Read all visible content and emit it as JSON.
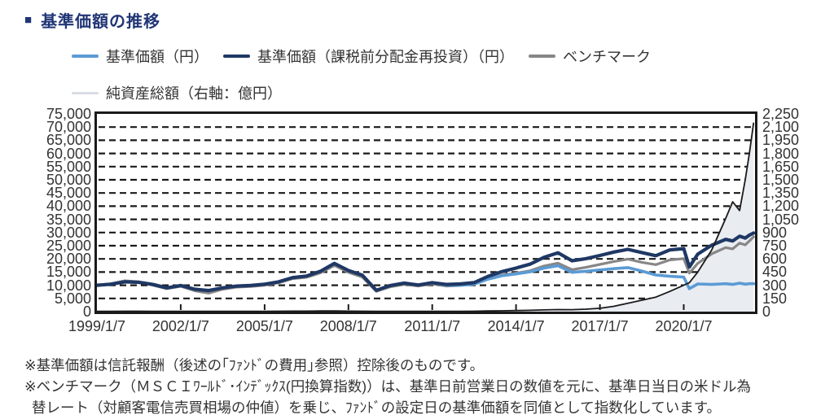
{
  "title": {
    "bullet": "■",
    "text": "基準価額の推移"
  },
  "legend": {
    "items": [
      {
        "label": "基準価額（円）",
        "color": "#5B9BD5",
        "thin": false
      },
      {
        "label": "基準価額（課税前分配金再投資）（円）",
        "color": "#1F3864",
        "thin": false
      },
      {
        "label": "ベンチマーク",
        "color": "#878787",
        "thin": false
      },
      {
        "label": "純資産総額（右軸：億円）",
        "color": "#D9DCE2",
        "thin": true
      }
    ]
  },
  "notes": {
    "line1": "※基準価額は信託報酬（後述の｢ﾌｧﾝﾄﾞの費用｣参照）控除後のものです。",
    "line2": "※ベンチマーク（ＭＳＣＩﾜｰﾙﾄﾞ･ｲﾝﾃﾞｯｸｽ(円換算指数)）は、基準日前営業日の数値を元に、基準日当日の米ドル為",
    "line3": "替レート（対顧客電信売買相場の仲値）を乗じ、ﾌｧﾝﾄﾞの設定日の基準価額を同値として指数化しています。"
  },
  "colors": {
    "title_navy": "#203576",
    "axis_text": "#333333",
    "frame": "#1a1a1a"
  },
  "chart_data": {
    "type": "line",
    "title": "基準価額の推移",
    "grid": "dashed-horizontal",
    "legend_position": "top",
    "x_range_years": [
      1999,
      2022.55
    ],
    "x_tick_years": [
      1999,
      2002,
      2005,
      2008,
      2011,
      2014,
      2017,
      2020
    ],
    "x_tick_labels": [
      "1999/1/7",
      "2002/1/7",
      "2005/1/7",
      "2008/1/7",
      "2011/1/7",
      "2014/1/7",
      "2017/1/7",
      "2020/1/7"
    ],
    "y_left": {
      "range": [
        0,
        75000
      ],
      "tick_step": 5000,
      "tick_labels_top_to_bottom": [
        "75,000",
        "70,000",
        "65,000",
        "60,000",
        "55,000",
        "50,000",
        "45,000",
        "40,000",
        "35,000",
        "30,000",
        "25,000",
        "20,000",
        "15,000",
        "10,000",
        "5,000",
        "0"
      ]
    },
    "y_right": {
      "label": "純資産総額（億円）",
      "range": [
        0,
        2250
      ],
      "tick_step": 150,
      "tick_labels_top_to_bottom": [
        "2,250",
        "2,100",
        "1,950",
        "1,800",
        "1,650",
        "1,500",
        "1,350",
        "1,200",
        "1,050",
        "900",
        "750",
        "600",
        "450",
        "300",
        "150",
        "0"
      ]
    },
    "x": [
      1999,
      1999.5,
      2000,
      2000.5,
      2001,
      2001.5,
      2002,
      2002.5,
      2003,
      2003.5,
      2004,
      2004.5,
      2005,
      2005.5,
      2006,
      2006.5,
      2007,
      2007.5,
      2008,
      2008.5,
      2009,
      2009.5,
      2010,
      2010.5,
      2011,
      2011.5,
      2012,
      2012.5,
      2013,
      2013.5,
      2014,
      2014.5,
      2015,
      2015.5,
      2016,
      2016.5,
      2017,
      2017.5,
      2018,
      2018.5,
      2019,
      2019.5,
      2020,
      2020.2,
      2020.5,
      2021,
      2021.5,
      2021.75,
      2022,
      2022.2,
      2022.35,
      2022.5
    ],
    "series": [
      {
        "name": "基準価額（円）",
        "axis": "left",
        "style": "line",
        "color": "#5B9BD5",
        "values": [
          10000,
          10400,
          11300,
          11100,
          10300,
          9000,
          9900,
          8500,
          8000,
          9000,
          9700,
          9900,
          10400,
          11300,
          12900,
          13500,
          15300,
          18300,
          15600,
          13800,
          8100,
          9900,
          10800,
          10100,
          11000,
          10000,
          10000,
          10400,
          12300,
          13600,
          14300,
          15100,
          16500,
          17400,
          14900,
          15300,
          15800,
          16300,
          16700,
          15400,
          13900,
          13400,
          13100,
          8700,
          10500,
          10300,
          10600,
          10300,
          10800,
          10400,
          10600,
          10600
        ]
      },
      {
        "name": "基準価額（課税前分配金再投資）（円）",
        "axis": "left",
        "style": "line",
        "color": "#1F3864",
        "values": [
          10000,
          10400,
          11300,
          11100,
          10300,
          9000,
          9900,
          8500,
          8000,
          9000,
          9700,
          9900,
          10400,
          11300,
          12900,
          13500,
          15300,
          18300,
          15600,
          13800,
          8100,
          9900,
          10800,
          10100,
          11000,
          10300,
          10500,
          11000,
          13400,
          15200,
          16500,
          18000,
          20600,
          22300,
          19300,
          20100,
          21300,
          22600,
          23600,
          22400,
          21200,
          23400,
          23900,
          16900,
          21800,
          25200,
          27400,
          26800,
          28600,
          27900,
          29000,
          29800
        ]
      },
      {
        "name": "ベンチマーク",
        "axis": "left",
        "style": "line",
        "color": "#878787",
        "values": [
          10000,
          10600,
          11700,
          11300,
          10000,
          8700,
          9600,
          7900,
          7000,
          8500,
          9300,
          9500,
          10000,
          10900,
          12500,
          13000,
          14700,
          17500,
          14900,
          13100,
          7700,
          9400,
          10300,
          9700,
          10500,
          9700,
          9900,
          10400,
          12400,
          13900,
          14600,
          15500,
          17300,
          18400,
          15900,
          16800,
          17900,
          19000,
          19900,
          18700,
          17800,
          19600,
          20100,
          14600,
          18300,
          21900,
          24300,
          23800,
          26000,
          25300,
          26800,
          28400
        ]
      },
      {
        "name": "純資産総額（右軸：億円）",
        "axis": "right",
        "style": "area",
        "line_color": "#1a1a1a",
        "fill_color": "#E9ECF1",
        "values": [
          3,
          4,
          5,
          5,
          4,
          4,
          4,
          3,
          3,
          3,
          4,
          4,
          4,
          5,
          6,
          6,
          7,
          8,
          6,
          5,
          3,
          4,
          4,
          4,
          4,
          4,
          4,
          5,
          7,
          9,
          12,
          15,
          19,
          23,
          22,
          28,
          38,
          60,
          95,
          130,
          165,
          230,
          300,
          330,
          450,
          700,
          1060,
          1250,
          1150,
          1500,
          1800,
          2150
        ]
      }
    ]
  }
}
